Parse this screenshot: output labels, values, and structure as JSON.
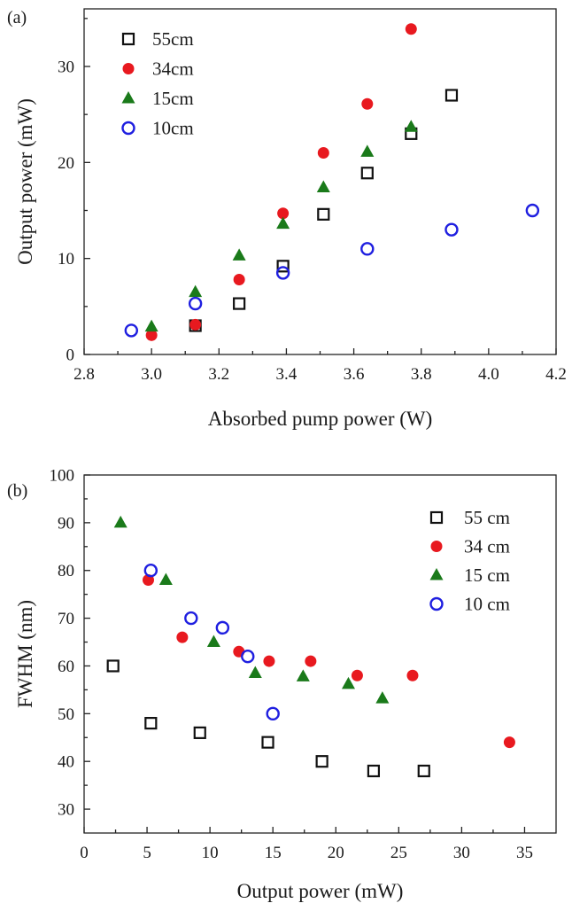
{
  "chart_data": [
    {
      "panel_label": "(a)",
      "type": "scatter",
      "title": "",
      "xlabel": "Absorbed pump power (W)",
      "ylabel": "Output power (mW)",
      "xlim": [
        2.8,
        4.2
      ],
      "ylim": [
        0,
        36
      ],
      "xticks": [
        "2.8",
        "3.0",
        "3.2",
        "3.4",
        "3.6",
        "3.8",
        "4.0",
        "4.2"
      ],
      "yticks": [
        "0",
        "10",
        "20",
        "30"
      ],
      "grid": false,
      "legend_position": "top-left",
      "series": [
        {
          "name": "55cm",
          "marker": "open-square",
          "color": "#111111",
          "x": [
            3.13,
            3.26,
            3.39,
            3.51,
            3.64,
            3.77,
            3.89
          ],
          "y": [
            3.0,
            5.3,
            9.2,
            14.6,
            18.9,
            23.0,
            27.0
          ]
        },
        {
          "name": "34cm",
          "marker": "filled-circle",
          "color": "#e8191f",
          "x": [
            3.0,
            3.13,
            3.26,
            3.39,
            3.51,
            3.64,
            3.77
          ],
          "y": [
            2.0,
            3.1,
            7.8,
            14.7,
            21.0,
            26.1,
            33.9
          ]
        },
        {
          "name": "15cm",
          "marker": "filled-triangle",
          "color": "#1a7a1a",
          "x": [
            3.0,
            3.13,
            3.26,
            3.39,
            3.51,
            3.64,
            3.77
          ],
          "y": [
            2.9,
            6.5,
            10.3,
            13.6,
            17.4,
            21.1,
            23.7
          ]
        },
        {
          "name": "10cm",
          "marker": "open-circle",
          "color": "#1f1fe0",
          "x": [
            2.94,
            3.13,
            3.39,
            3.64,
            3.89,
            4.13
          ],
          "y": [
            2.5,
            5.3,
            8.5,
            11.0,
            13.0,
            15.0
          ]
        }
      ]
    },
    {
      "panel_label": "(b)",
      "type": "scatter",
      "title": "",
      "xlabel": "Output power (mW)",
      "ylabel": "FWHM (nm)",
      "xlim": [
        0,
        37.5
      ],
      "ylim": [
        25,
        100
      ],
      "xticks": [
        "0",
        "5",
        "10",
        "15",
        "20",
        "25",
        "30",
        "35"
      ],
      "yticks": [
        "30",
        "40",
        "50",
        "60",
        "70",
        "80",
        "90",
        "100"
      ],
      "grid": false,
      "legend_position": "top-right",
      "series": [
        {
          "name": "55 cm",
          "marker": "open-square",
          "color": "#111111",
          "x": [
            2.3,
            5.3,
            9.2,
            14.6,
            18.9,
            23.0,
            27.0
          ],
          "y": [
            60,
            48,
            46,
            44,
            40,
            38,
            38
          ]
        },
        {
          "name": "34 cm",
          "marker": "filled-circle",
          "color": "#e8191f",
          "x": [
            5.1,
            7.8,
            12.3,
            14.7,
            18.0,
            21.7,
            26.1,
            33.8
          ],
          "y": [
            78,
            66,
            63,
            61,
            61,
            58,
            58,
            44
          ]
        },
        {
          "name": "15 cm",
          "marker": "filled-triangle",
          "color": "#1a7a1a",
          "x": [
            2.9,
            6.5,
            10.3,
            13.6,
            17.4,
            21.0,
            23.7
          ],
          "y": [
            90,
            78,
            65,
            58.5,
            57.8,
            56.2,
            53.2
          ]
        },
        {
          "name": "10 cm",
          "marker": "open-circle",
          "color": "#1f1fe0",
          "x": [
            5.3,
            8.5,
            11.0,
            13.0,
            15.0
          ],
          "y": [
            80,
            70,
            68,
            62,
            50
          ]
        }
      ]
    }
  ]
}
